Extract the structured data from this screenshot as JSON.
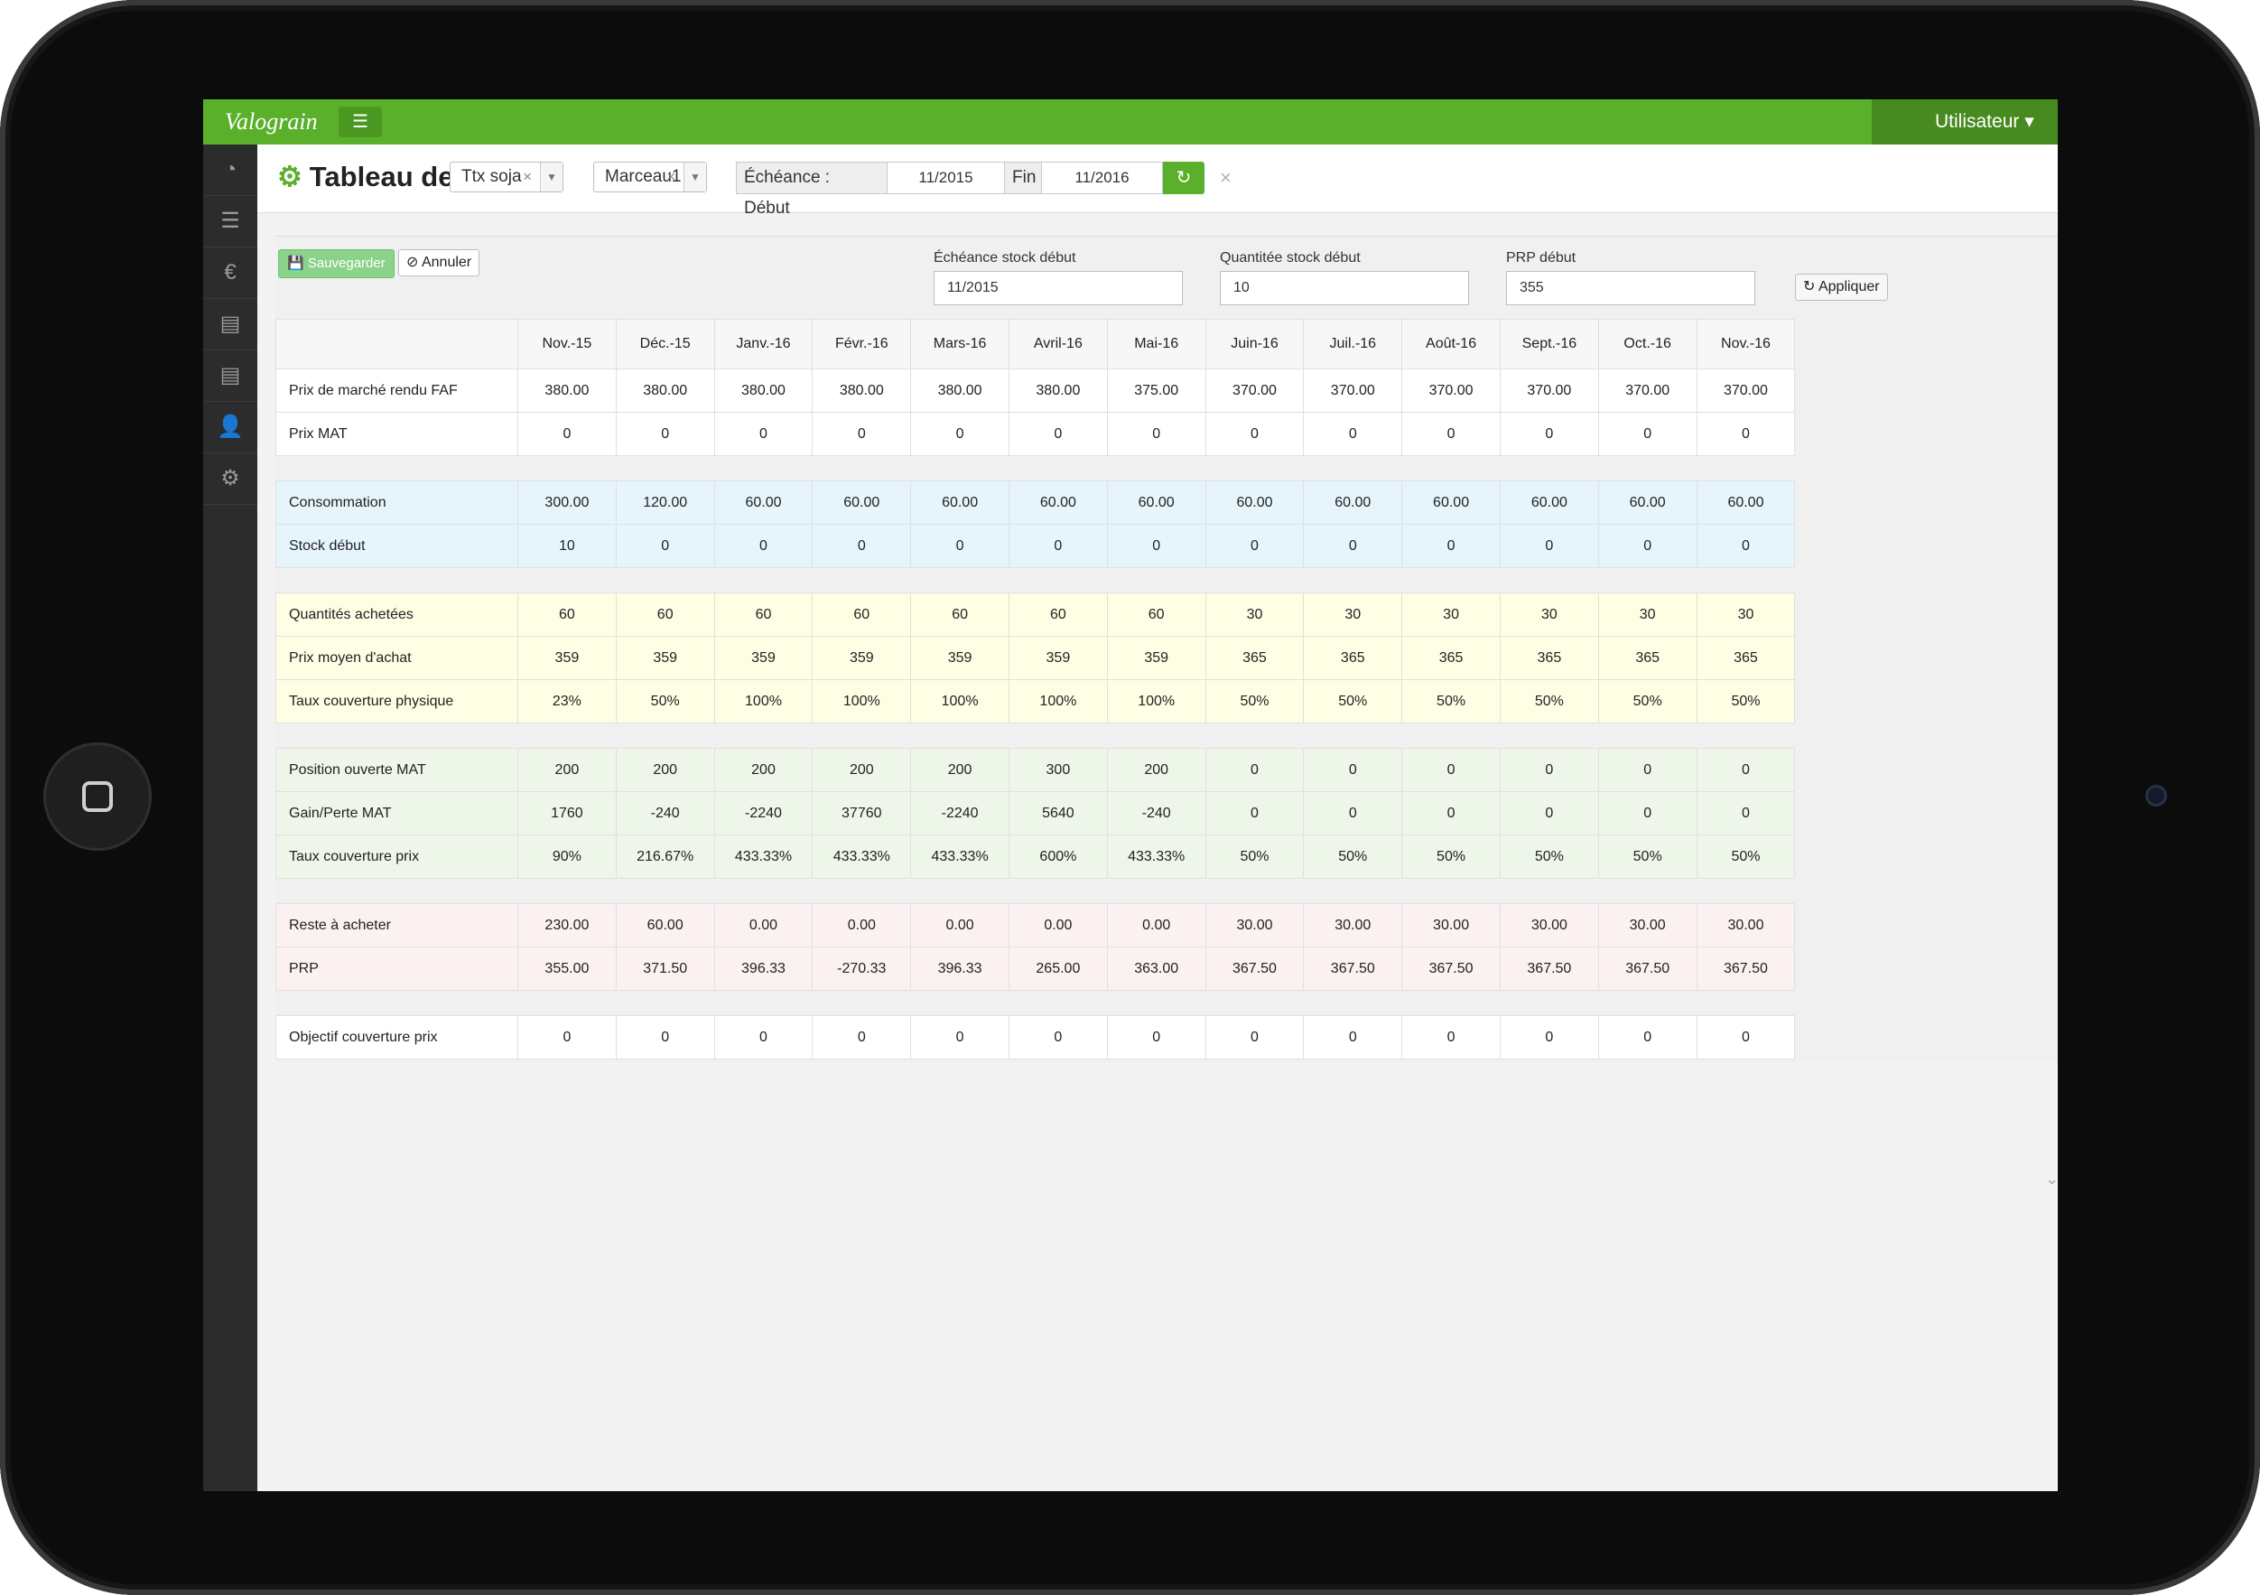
{
  "app": {
    "logo": "Valograin",
    "menu_icon": "☰",
    "user_label": "Utilisateur ▾"
  },
  "sidebar": {
    "items": [
      {
        "icon": "dashboard-icon",
        "glyph": "◔"
      },
      {
        "icon": "list-icon",
        "glyph": "☰"
      },
      {
        "icon": "euro-icon",
        "glyph": "€"
      },
      {
        "icon": "table-icon",
        "glyph": "▤"
      },
      {
        "icon": "table-alt-icon",
        "glyph": "▤"
      },
      {
        "icon": "user-icon",
        "glyph": "👤"
      },
      {
        "icon": "settings-icon",
        "glyph": "⚙"
      }
    ]
  },
  "header": {
    "title": "Tableau de bord :",
    "title_icon": "⚙",
    "product_select": "Ttx soja",
    "farm_select": "Marceau1",
    "echeance_label": "Échéance : Début",
    "start_date": "11/2015",
    "fin_label": "Fin",
    "end_date": "11/2016",
    "refresh_icon": "↻",
    "clear_icon": "×",
    "select_clear": "×",
    "select_caret": "▼"
  },
  "toolbar": {
    "save_label": "💾 Sauvegarder",
    "cancel_label": "⊘ Annuler",
    "stock_date_label": "Échéance stock début",
    "stock_date_value": "11/2015",
    "stock_qty_label": "Quantitée stock début",
    "stock_qty_value": "10",
    "prp_label": "PRP début",
    "prp_value": "355",
    "apply_label": "↻ Appliquer"
  },
  "colors": {
    "brand": "#5bb02b",
    "brand_dark": "#468a20",
    "row_blue": "#e6f5fb",
    "row_yellow": "#fefee4",
    "row_green": "#edf6e9",
    "row_pink": "#fcf1f1"
  },
  "table": {
    "columns": [
      "Nov.-15",
      "Déc.-15",
      "Janv.-16",
      "Févr.-16",
      "Mars-16",
      "Avril-16",
      "Mai-16",
      "Juin-16",
      "Juil.-16",
      "Août-16",
      "Sept.-16",
      "Oct.-16",
      "Nov.-16"
    ],
    "groups": [
      {
        "color": "white",
        "rows": [
          {
            "label": "Prix de marché rendu FAF",
            "values": [
              "380.00",
              "380.00",
              "380.00",
              "380.00",
              "380.00",
              "380.00",
              "375.00",
              "370.00",
              "370.00",
              "370.00",
              "370.00",
              "370.00",
              "370.00"
            ]
          },
          {
            "label": "Prix MAT",
            "values": [
              "0",
              "0",
              "0",
              "0",
              "0",
              "0",
              "0",
              "0",
              "0",
              "0",
              "0",
              "0",
              "0"
            ]
          }
        ]
      },
      {
        "color": "blue",
        "rows": [
          {
            "label": "Consommation",
            "values": [
              "300.00",
              "120.00",
              "60.00",
              "60.00",
              "60.00",
              "60.00",
              "60.00",
              "60.00",
              "60.00",
              "60.00",
              "60.00",
              "60.00",
              "60.00"
            ]
          },
          {
            "label": "Stock début",
            "values": [
              "10",
              "0",
              "0",
              "0",
              "0",
              "0",
              "0",
              "0",
              "0",
              "0",
              "0",
              "0",
              "0"
            ]
          }
        ]
      },
      {
        "color": "yellow",
        "rows": [
          {
            "label": "Quantités achetées",
            "values": [
              "60",
              "60",
              "60",
              "60",
              "60",
              "60",
              "60",
              "30",
              "30",
              "30",
              "30",
              "30",
              "30"
            ]
          },
          {
            "label": "Prix moyen d'achat",
            "values": [
              "359",
              "359",
              "359",
              "359",
              "359",
              "359",
              "359",
              "365",
              "365",
              "365",
              "365",
              "365",
              "365"
            ]
          },
          {
            "label": "Taux couverture physique",
            "values": [
              "23%",
              "50%",
              "100%",
              "100%",
              "100%",
              "100%",
              "100%",
              "50%",
              "50%",
              "50%",
              "50%",
              "50%",
              "50%"
            ]
          }
        ]
      },
      {
        "color": "green",
        "rows": [
          {
            "label": "Position ouverte MAT",
            "values": [
              "200",
              "200",
              "200",
              "200",
              "200",
              "300",
              "200",
              "0",
              "0",
              "0",
              "0",
              "0",
              "0"
            ]
          },
          {
            "label": "Gain/Perte MAT",
            "values": [
              "1760",
              "-240",
              "-2240",
              "37760",
              "-2240",
              "5640",
              "-240",
              "0",
              "0",
              "0",
              "0",
              "0",
              "0"
            ]
          },
          {
            "label": "Taux couverture prix",
            "values": [
              "90%",
              "216.67%",
              "433.33%",
              "433.33%",
              "433.33%",
              "600%",
              "433.33%",
              "50%",
              "50%",
              "50%",
              "50%",
              "50%",
              "50%"
            ]
          }
        ]
      },
      {
        "color": "pink",
        "rows": [
          {
            "label": "Reste à acheter",
            "values": [
              "230.00",
              "60.00",
              "0.00",
              "0.00",
              "0.00",
              "0.00",
              "0.00",
              "30.00",
              "30.00",
              "30.00",
              "30.00",
              "30.00",
              "30.00"
            ]
          },
          {
            "label": "PRP",
            "values": [
              "355.00",
              "371.50",
              "396.33",
              "-270.33",
              "396.33",
              "265.00",
              "363.00",
              "367.50",
              "367.50",
              "367.50",
              "367.50",
              "367.50",
              "367.50"
            ]
          }
        ]
      },
      {
        "color": "white",
        "rows": [
          {
            "label": "Objectif couverture prix",
            "values": [
              "0",
              "0",
              "0",
              "0",
              "0",
              "0",
              "0",
              "0",
              "0",
              "0",
              "0",
              "0",
              "0"
            ]
          }
        ]
      }
    ]
  },
  "footer": {
    "scroll_icon": "⌄"
  }
}
